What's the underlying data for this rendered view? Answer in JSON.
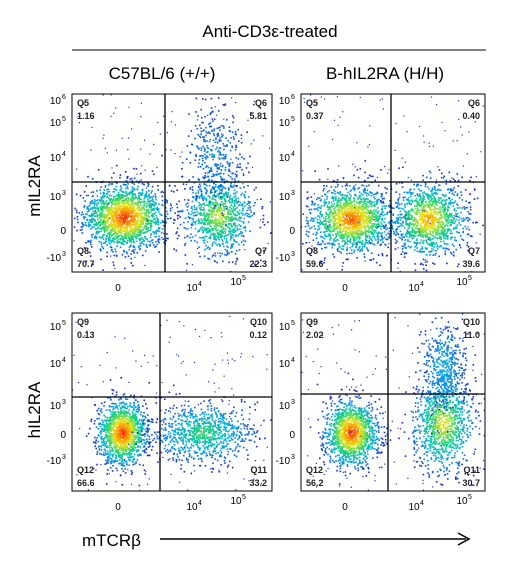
{
  "chart_data": {
    "type": "scatter",
    "title": "Anti-CD3ε-treated",
    "column_headers": [
      "C57BL/6 (+/+)",
      "B-hIL2RA (H/H)"
    ],
    "row_labels": [
      "mIL2RA",
      "hIL2RA"
    ],
    "xlabel": "mTCRβ",
    "x_tick_labels": [
      "0",
      "10",
      "4",
      "10",
      "5"
    ],
    "y_tick_labels": {
      "row1": [
        [
          "10",
          "6"
        ],
        [
          "10",
          "5"
        ],
        [
          "10",
          "4"
        ],
        [
          "10",
          "3"
        ],
        [
          "0",
          ""
        ],
        [
          "-10",
          "3"
        ]
      ],
      "row2": [
        [
          "10",
          "5"
        ],
        [
          "10",
          "4"
        ],
        [
          "10",
          "3"
        ],
        [
          "0",
          ""
        ],
        [
          "-10",
          "3"
        ]
      ]
    },
    "panels": [
      {
        "row": "mIL2RA",
        "column": "C57BL/6 (+/+)",
        "quadrants": [
          {
            "name": "Q5",
            "value": "1.16",
            "pos": "top-left"
          },
          {
            "name": "Q6",
            "value": "5.81",
            "pos": "top-right"
          },
          {
            "name": "Q8",
            "value": "70.7",
            "pos": "bottom-left"
          },
          {
            "name": "Q7",
            "value": "22.3",
            "pos": "bottom-right"
          }
        ]
      },
      {
        "row": "mIL2RA",
        "column": "B-hIL2RA (H/H)",
        "quadrants": [
          {
            "name": "Q5",
            "value": "0.37",
            "pos": "top-left"
          },
          {
            "name": "Q6",
            "value": "0.40",
            "pos": "top-right"
          },
          {
            "name": "Q8",
            "value": "59.6",
            "pos": "bottom-left"
          },
          {
            "name": "Q7",
            "value": "39.6",
            "pos": "bottom-right"
          }
        ]
      },
      {
        "row": "hIL2RA",
        "column": "C57BL/6 (+/+)",
        "quadrants": [
          {
            "name": "Q9",
            "value": "0.13",
            "pos": "top-left"
          },
          {
            "name": "Q10",
            "value": "0.12",
            "pos": "top-right"
          },
          {
            "name": "Q12",
            "value": "66.6",
            "pos": "bottom-left"
          },
          {
            "name": "Q11",
            "value": "33.2",
            "pos": "bottom-right"
          }
        ]
      },
      {
        "row": "hIL2RA",
        "column": "B-hIL2RA (H/H)",
        "quadrants": [
          {
            "name": "Q9",
            "value": "2.02",
            "pos": "top-left"
          },
          {
            "name": "Q10",
            "value": "11.0",
            "pos": "top-right"
          },
          {
            "name": "Q12",
            "value": "56.2",
            "pos": "bottom-left"
          },
          {
            "name": "Q11",
            "value": "30.7",
            "pos": "bottom-right"
          }
        ]
      }
    ],
    "grid": false,
    "legend": "none",
    "colors": {
      "density_low": "#1a2fd6",
      "density_mid": "#00c8e0",
      "density_high": "#ff2a00",
      "gate": "#000000"
    }
  }
}
